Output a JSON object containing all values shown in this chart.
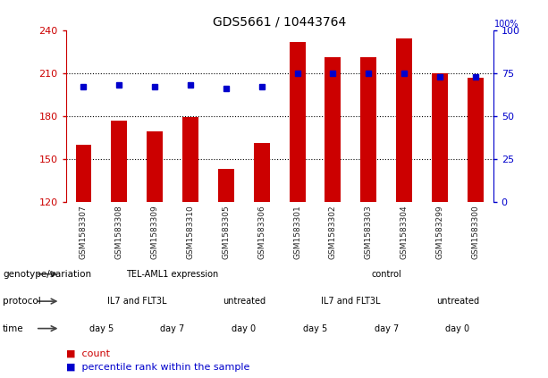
{
  "title": "GDS5661 / 10443764",
  "samples": [
    "GSM1583307",
    "GSM1583308",
    "GSM1583309",
    "GSM1583310",
    "GSM1583305",
    "GSM1583306",
    "GSM1583301",
    "GSM1583302",
    "GSM1583303",
    "GSM1583304",
    "GSM1583299",
    "GSM1583300"
  ],
  "count_values": [
    160,
    177,
    169,
    179,
    143,
    161,
    232,
    221,
    221,
    234,
    210,
    207
  ],
  "percentile_values": [
    67,
    68,
    67,
    68,
    66,
    67,
    75,
    75,
    75,
    75,
    73,
    73
  ],
  "ylim_left": [
    120,
    240
  ],
  "ylim_right": [
    0,
    100
  ],
  "yticks_left": [
    120,
    150,
    180,
    210,
    240
  ],
  "yticks_right": [
    0,
    25,
    50,
    75,
    100
  ],
  "bar_color": "#cc0000",
  "dot_color": "#0000cc",
  "bg_color": "#ffffff",
  "left_axis_color": "#cc0000",
  "right_axis_color": "#0000cc",
  "xtick_bg_color": "#cccccc",
  "genotype_row": {
    "label": "genotype/variation",
    "groups": [
      {
        "text": "TEL-AML1 expression",
        "start": 0,
        "end": 6,
        "color": "#88dd88"
      },
      {
        "text": "control",
        "start": 6,
        "end": 12,
        "color": "#44bb44"
      }
    ]
  },
  "protocol_row": {
    "label": "protocol",
    "groups": [
      {
        "text": "IL7 and FLT3L",
        "start": 0,
        "end": 4,
        "color": "#8888cc"
      },
      {
        "text": "untreated",
        "start": 4,
        "end": 6,
        "color": "#aaaadd"
      },
      {
        "text": "IL7 and FLT3L",
        "start": 6,
        "end": 10,
        "color": "#8888cc"
      },
      {
        "text": "untreated",
        "start": 10,
        "end": 12,
        "color": "#aaaadd"
      }
    ]
  },
  "time_row": {
    "label": "time",
    "groups": [
      {
        "text": "day 5",
        "start": 0,
        "end": 2,
        "color": "#cc6666"
      },
      {
        "text": "day 7",
        "start": 2,
        "end": 4,
        "color": "#bb4444"
      },
      {
        "text": "day 0",
        "start": 4,
        "end": 6,
        "color": "#f0cccc"
      },
      {
        "text": "day 5",
        "start": 6,
        "end": 8,
        "color": "#cc6666"
      },
      {
        "text": "day 7",
        "start": 8,
        "end": 10,
        "color": "#bb4444"
      },
      {
        "text": "day 0",
        "start": 10,
        "end": 12,
        "color": "#f0cccc"
      }
    ]
  }
}
